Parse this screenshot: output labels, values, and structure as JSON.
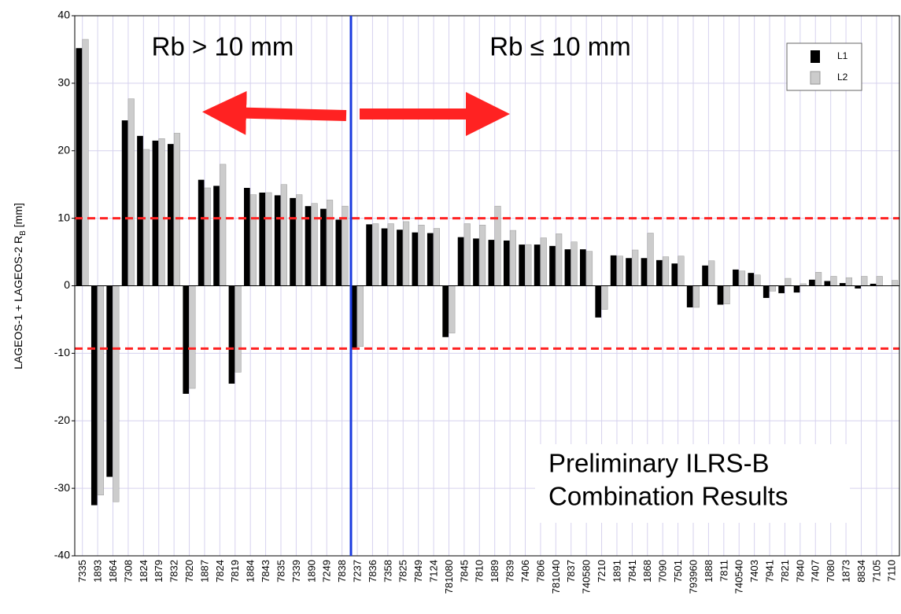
{
  "chart_data": {
    "type": "bar",
    "y_label": {
      "main": "LAGEOS-1 + LAGEOS-2 R",
      "sub": "B",
      "unit": "[mm]"
    },
    "annotations": [
      "Rb > 10 mm",
      "Rb ≤ 10 mm",
      "Preliminary ILRS-B",
      "Combination Results"
    ],
    "categories": [
      "7335",
      "1893",
      "1864",
      "7308",
      "1824",
      "1879",
      "7832",
      "7820",
      "1887",
      "7824",
      "7819",
      "1884",
      "7843",
      "7835",
      "7339",
      "1890",
      "7249",
      "7838",
      "7237",
      "7836",
      "7358",
      "7825",
      "7849",
      "7124",
      "781080",
      "7845",
      "7810",
      "1889",
      "7839",
      "7406",
      "7806",
      "781040",
      "7837",
      "740580",
      "7210",
      "1891",
      "7841",
      "1868",
      "7090",
      "7501",
      "793960",
      "1888",
      "7811",
      "740540",
      "7403",
      "7941",
      "7821",
      "7840",
      "7407",
      "7080",
      "1873",
      "8834",
      "7105",
      "7110"
    ],
    "series": [
      {
        "name": "L1",
        "color": "#000000",
        "values": [
          35.2,
          -32.5,
          -28.3,
          24.5,
          22.2,
          21.5,
          21,
          -16,
          15.7,
          14.8,
          -14.5,
          14.5,
          13.8,
          13.4,
          13,
          11.8,
          11.4,
          9.8,
          -9.3,
          9.1,
          8.5,
          8.3,
          7.9,
          7.8,
          -7.6,
          7.2,
          7,
          6.8,
          6.7,
          6.1,
          6.1,
          5.9,
          5.4,
          5.4,
          -4.7,
          4.5,
          4.1,
          4.1,
          3.8,
          3.3,
          -3.2,
          3,
          -2.8,
          2.4,
          1.9,
          -1.8,
          -1.1,
          -1,
          0.9,
          0.7,
          0.4,
          -0.4,
          0.3,
          0
        ]
      },
      {
        "name": "L2",
        "color": "#cccccc",
        "values": [
          36.5,
          -31,
          -32,
          27.7,
          20.2,
          21.8,
          22.6,
          -15.2,
          14.5,
          18,
          -12.8,
          13.5,
          13.8,
          15,
          13.5,
          12.2,
          12.7,
          11.8,
          -9,
          9.2,
          9.2,
          9.5,
          9,
          8.5,
          -7,
          9.2,
          9,
          11.8,
          8.2,
          6.1,
          7.1,
          7.7,
          6.5,
          5.1,
          -3.5,
          4.4,
          5.3,
          7.8,
          4.3,
          4.4,
          -3.2,
          3.7,
          -2.7,
          2.2,
          1.6,
          -0.8,
          1.1,
          0.3,
          2,
          1.4,
          1.2,
          1.4,
          1.4,
          0.8
        ]
      }
    ],
    "reference_lines": [
      10,
      -9.3
    ],
    "ylim": [
      -40,
      40
    ],
    "yticks": [
      -40,
      -30,
      -20,
      -10,
      0,
      10,
      20,
      30,
      40
    ],
    "grid": true,
    "legend": "upper right"
  }
}
